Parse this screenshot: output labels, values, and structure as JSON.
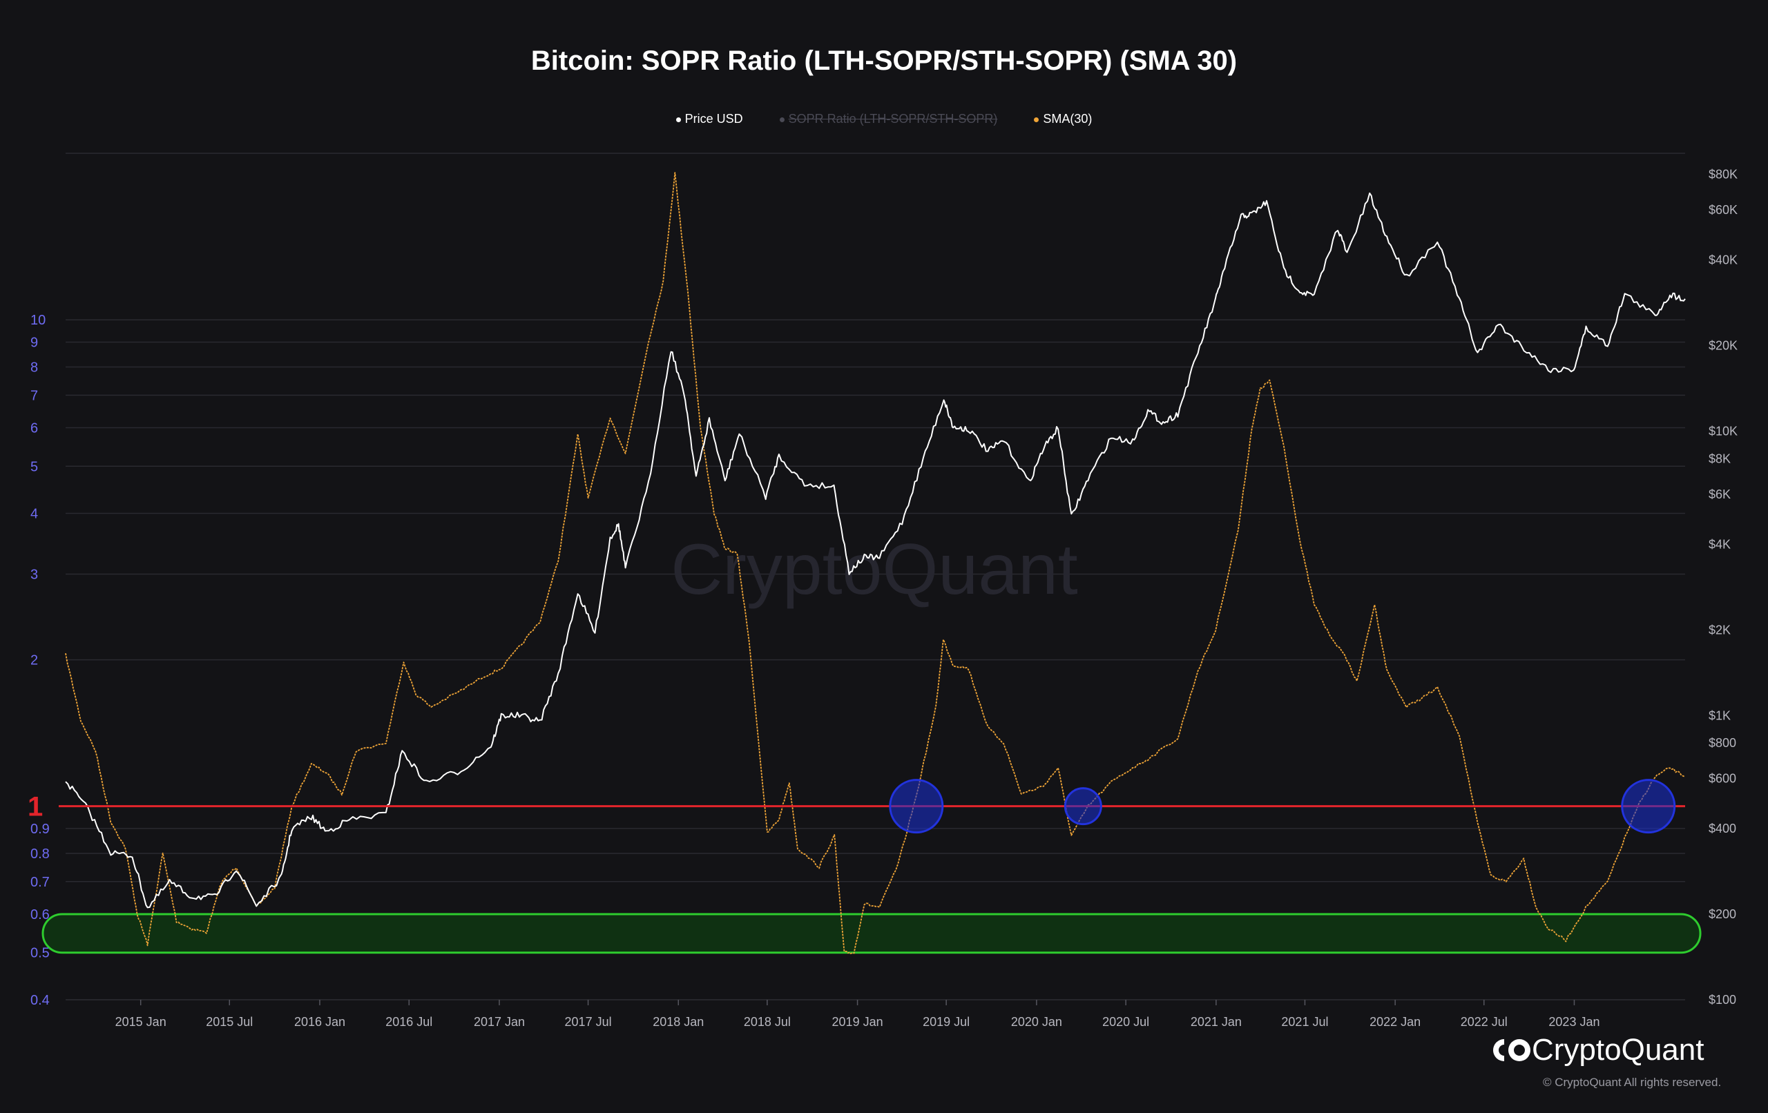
{
  "chart_data": {
    "type": "line",
    "title": "Bitcoin: SOPR Ratio (LTH-SOPR/STH-SOPR) (SMA 30)",
    "legend": [
      {
        "name": "Price USD",
        "color": "#ffffff",
        "enabled": true
      },
      {
        "name": "SOPR Ratio (LTH-SOPR/STH-SOPR)",
        "color": "#5a5a66",
        "enabled": false
      },
      {
        "name": "SMA(30)",
        "color": "#f0a537",
        "enabled": true
      }
    ],
    "legend_placement": "top-center",
    "x_ticks": [
      "2015 Jan",
      "2015 Jul",
      "2016 Jan",
      "2016 Jul",
      "2017 Jan",
      "2017 Jul",
      "2018 Jan",
      "2018 Jul",
      "2019 Jan",
      "2019 Jul",
      "2020 Jan",
      "2020 Jul",
      "2021 Jan",
      "2021 Jul",
      "2022 Jan",
      "2022 Jul",
      "2023 Jan"
    ],
    "x_range": [
      "2014-08-01",
      "2023-08-15"
    ],
    "left_axis": {
      "scale": "log",
      "range": [
        0.4,
        22
      ],
      "ticks": [
        "0.4",
        "0.5",
        "0.6",
        "0.7",
        "0.8",
        "0.9",
        "1",
        "2",
        "3",
        "4",
        "5",
        "6",
        "7",
        "8",
        "9",
        "10"
      ],
      "highlight_tick": "1"
    },
    "right_axis": {
      "scale": "log",
      "range": [
        100,
        95000
      ],
      "ticks": [
        "$100",
        "$200",
        "$400",
        "$600",
        "$800",
        "$1K",
        "$2K",
        "$4K",
        "$6K",
        "$8K",
        "$10K",
        "$20K",
        "$40K",
        "$60K",
        "$80K"
      ]
    },
    "grid": true,
    "series": [
      {
        "name": "Price USD",
        "axis": "right",
        "color": "#ffffff",
        "points": [
          [
            "2014-08-01",
            590
          ],
          [
            "2014-09-15",
            470
          ],
          [
            "2014-11-01",
            330
          ],
          [
            "2014-12-15",
            320
          ],
          [
            "2015-01-15",
            210
          ],
          [
            "2015-03-01",
            260
          ],
          [
            "2015-04-15",
            230
          ],
          [
            "2015-06-01",
            230
          ],
          [
            "2015-07-15",
            290
          ],
          [
            "2015-08-25",
            215
          ],
          [
            "2015-10-15",
            270
          ],
          [
            "2015-11-05",
            400
          ],
          [
            "2015-12-15",
            440
          ],
          [
            "2016-01-15",
            390
          ],
          [
            "2016-03-01",
            430
          ],
          [
            "2016-05-15",
            450
          ],
          [
            "2016-06-17",
            750
          ],
          [
            "2016-08-05",
            580
          ],
          [
            "2016-10-15",
            640
          ],
          [
            "2016-12-15",
            780
          ],
          [
            "2017-01-05",
            1000
          ],
          [
            "2017-02-15",
            1000
          ],
          [
            "2017-03-25",
            950
          ],
          [
            "2017-05-01",
            1400
          ],
          [
            "2017-06-10",
            2700
          ],
          [
            "2017-07-15",
            1950
          ],
          [
            "2017-08-15",
            4200
          ],
          [
            "2017-09-01",
            4700
          ],
          [
            "2017-09-15",
            3300
          ],
          [
            "2017-11-01",
            6500
          ],
          [
            "2017-12-17",
            19500
          ],
          [
            "2018-01-15",
            13000
          ],
          [
            "2018-02-06",
            6900
          ],
          [
            "2018-03-05",
            11000
          ],
          [
            "2018-04-06",
            6700
          ],
          [
            "2018-05-05",
            9800
          ],
          [
            "2018-06-28",
            5900
          ],
          [
            "2018-07-25",
            8200
          ],
          [
            "2018-09-15",
            6500
          ],
          [
            "2018-11-14",
            6400
          ],
          [
            "2018-12-15",
            3200
          ],
          [
            "2019-01-15",
            3600
          ],
          [
            "2019-02-15",
            3600
          ],
          [
            "2019-04-02",
            4800
          ],
          [
            "2019-05-15",
            8000
          ],
          [
            "2019-06-26",
            13000
          ],
          [
            "2019-07-15",
            10300
          ],
          [
            "2019-08-15",
            10200
          ],
          [
            "2019-09-24",
            8500
          ],
          [
            "2019-10-26",
            9300
          ],
          [
            "2019-12-17",
            6600
          ],
          [
            "2020-01-15",
            8700
          ],
          [
            "2020-02-14",
            10300
          ],
          [
            "2020-03-12",
            5000
          ],
          [
            "2020-04-15",
            6800
          ],
          [
            "2020-06-01",
            9500
          ],
          [
            "2020-07-15",
            9200
          ],
          [
            "2020-08-15",
            11800
          ],
          [
            "2020-09-15",
            10700
          ],
          [
            "2020-10-15",
            11500
          ],
          [
            "2020-11-25",
            19000
          ],
          [
            "2020-12-31",
            29000
          ],
          [
            "2021-01-15",
            36000
          ],
          [
            "2021-02-21",
            57000
          ],
          [
            "2021-03-15",
            58000
          ],
          [
            "2021-04-14",
            64000
          ],
          [
            "2021-05-19",
            37000
          ],
          [
            "2021-06-21",
            31000
          ],
          [
            "2021-07-20",
            30000
          ],
          [
            "2021-09-06",
            52000
          ],
          [
            "2021-09-25",
            42000
          ],
          [
            "2021-11-10",
            68000
          ],
          [
            "2021-12-15",
            48000
          ],
          [
            "2022-01-24",
            35000
          ],
          [
            "2022-03-28",
            47000
          ],
          [
            "2022-05-12",
            29000
          ],
          [
            "2022-06-18",
            18800
          ],
          [
            "2022-07-30",
            23800
          ],
          [
            "2022-09-15",
            20000
          ],
          [
            "2022-11-09",
            16500
          ],
          [
            "2022-12-31",
            16500
          ],
          [
            "2023-01-25",
            23000
          ],
          [
            "2023-03-10",
            20100
          ],
          [
            "2023-04-14",
            30400
          ],
          [
            "2023-06-15",
            25500
          ],
          [
            "2023-07-15",
            30200
          ],
          [
            "2023-08-15",
            29200
          ]
        ]
      },
      {
        "name": "SMA(30)",
        "axis": "left",
        "color": "#f0a537",
        "points": [
          [
            "2014-08-01",
            2.05
          ],
          [
            "2014-09-01",
            1.5
          ],
          [
            "2014-10-01",
            1.3
          ],
          [
            "2014-11-01",
            0.93
          ],
          [
            "2014-12-01",
            0.82
          ],
          [
            "2014-12-25",
            0.6
          ],
          [
            "2015-01-15",
            0.52
          ],
          [
            "2015-02-15",
            0.8
          ],
          [
            "2015-03-15",
            0.58
          ],
          [
            "2015-04-15",
            0.56
          ],
          [
            "2015-05-15",
            0.55
          ],
          [
            "2015-06-15",
            0.7
          ],
          [
            "2015-07-15",
            0.75
          ],
          [
            "2015-08-25",
            0.62
          ],
          [
            "2015-10-01",
            0.68
          ],
          [
            "2015-11-05",
            1.0
          ],
          [
            "2015-12-15",
            1.22
          ],
          [
            "2016-01-15",
            1.17
          ],
          [
            "2016-02-15",
            1.06
          ],
          [
            "2016-03-15",
            1.3
          ],
          [
            "2016-05-15",
            1.35
          ],
          [
            "2016-06-20",
            1.98
          ],
          [
            "2016-07-15",
            1.7
          ],
          [
            "2016-08-15",
            1.6
          ],
          [
            "2016-10-15",
            1.73
          ],
          [
            "2016-12-01",
            1.85
          ],
          [
            "2017-01-05",
            1.92
          ],
          [
            "2017-02-15",
            2.15
          ],
          [
            "2017-03-25",
            2.4
          ],
          [
            "2017-05-01",
            3.2
          ],
          [
            "2017-06-10",
            5.8
          ],
          [
            "2017-07-01",
            4.3
          ],
          [
            "2017-08-15",
            6.3
          ],
          [
            "2017-09-15",
            5.3
          ],
          [
            "2017-11-01",
            9.0
          ],
          [
            "2017-12-01",
            12.0
          ],
          [
            "2017-12-25",
            20.0
          ],
          [
            "2018-01-20",
            11.5
          ],
          [
            "2018-02-15",
            6.0
          ],
          [
            "2018-03-15",
            4.0
          ],
          [
            "2018-04-05",
            3.4
          ],
          [
            "2018-05-01",
            3.3
          ],
          [
            "2018-05-25",
            2.2
          ],
          [
            "2018-07-01",
            0.88
          ],
          [
            "2018-07-25",
            0.94
          ],
          [
            "2018-08-15",
            1.12
          ],
          [
            "2018-09-01",
            0.82
          ],
          [
            "2018-10-15",
            0.75
          ],
          [
            "2018-11-15",
            0.87
          ],
          [
            "2018-12-05",
            0.5
          ],
          [
            "2018-12-25",
            0.5
          ],
          [
            "2019-01-15",
            0.63
          ],
          [
            "2019-02-15",
            0.62
          ],
          [
            "2019-03-25",
            0.76
          ],
          [
            "2019-05-01",
            1.05
          ],
          [
            "2019-06-10",
            1.6
          ],
          [
            "2019-06-25",
            2.2
          ],
          [
            "2019-07-15",
            1.95
          ],
          [
            "2019-08-15",
            1.92
          ],
          [
            "2019-09-24",
            1.45
          ],
          [
            "2019-10-26",
            1.35
          ],
          [
            "2019-12-01",
            1.06
          ],
          [
            "2020-01-15",
            1.1
          ],
          [
            "2020-02-14",
            1.2
          ],
          [
            "2020-03-12",
            0.87
          ],
          [
            "2020-04-15",
            1.0
          ],
          [
            "2020-06-01",
            1.12
          ],
          [
            "2020-07-15",
            1.2
          ],
          [
            "2020-08-15",
            1.25
          ],
          [
            "2020-10-15",
            1.38
          ],
          [
            "2020-11-25",
            1.9
          ],
          [
            "2020-12-31",
            2.3
          ],
          [
            "2021-02-15",
            3.7
          ],
          [
            "2021-03-15",
            6.0
          ],
          [
            "2021-04-01",
            7.2
          ],
          [
            "2021-04-20",
            7.5
          ],
          [
            "2021-05-19",
            5.5
          ],
          [
            "2021-06-21",
            3.5
          ],
          [
            "2021-07-20",
            2.6
          ],
          [
            "2021-08-15",
            2.3
          ],
          [
            "2021-09-25",
            2.0
          ],
          [
            "2021-10-15",
            1.8
          ],
          [
            "2021-11-20",
            2.6
          ],
          [
            "2021-12-15",
            1.9
          ],
          [
            "2022-01-24",
            1.6
          ],
          [
            "2022-03-01",
            1.68
          ],
          [
            "2022-03-28",
            1.75
          ],
          [
            "2022-05-12",
            1.4
          ],
          [
            "2022-06-18",
            0.92
          ],
          [
            "2022-07-15",
            0.72
          ],
          [
            "2022-08-15",
            0.7
          ],
          [
            "2022-09-20",
            0.78
          ],
          [
            "2022-10-15",
            0.62
          ],
          [
            "2022-11-09",
            0.56
          ],
          [
            "2022-12-15",
            0.53
          ],
          [
            "2023-01-25",
            0.62
          ],
          [
            "2023-03-10",
            0.7
          ],
          [
            "2023-04-14",
            0.86
          ],
          [
            "2023-05-15",
            1.02
          ],
          [
            "2023-06-15",
            1.15
          ],
          [
            "2023-07-15",
            1.2
          ],
          [
            "2023-08-15",
            1.15
          ]
        ]
      }
    ],
    "annotations": [
      {
        "type": "hline",
        "axis": "left",
        "y": 1,
        "color": "#e3242b",
        "label": "1"
      },
      {
        "type": "band",
        "axis": "left",
        "y": [
          0.5,
          0.6
        ],
        "color": "#2ecc2e"
      },
      {
        "type": "circle",
        "x": "2019-05-01",
        "y": 1,
        "color": "#2233dd",
        "size": "large"
      },
      {
        "type": "circle",
        "x": "2020-04-05",
        "y": 1,
        "color": "#2233dd",
        "size": "small"
      },
      {
        "type": "circle",
        "x": "2023-06-01",
        "y": 1,
        "color": "#2233dd",
        "size": "large"
      }
    ]
  },
  "watermark": "CryptoQuant",
  "brand": {
    "name": "CryptoQuant",
    "copyright": "© CryptoQuant All rights reserved."
  }
}
